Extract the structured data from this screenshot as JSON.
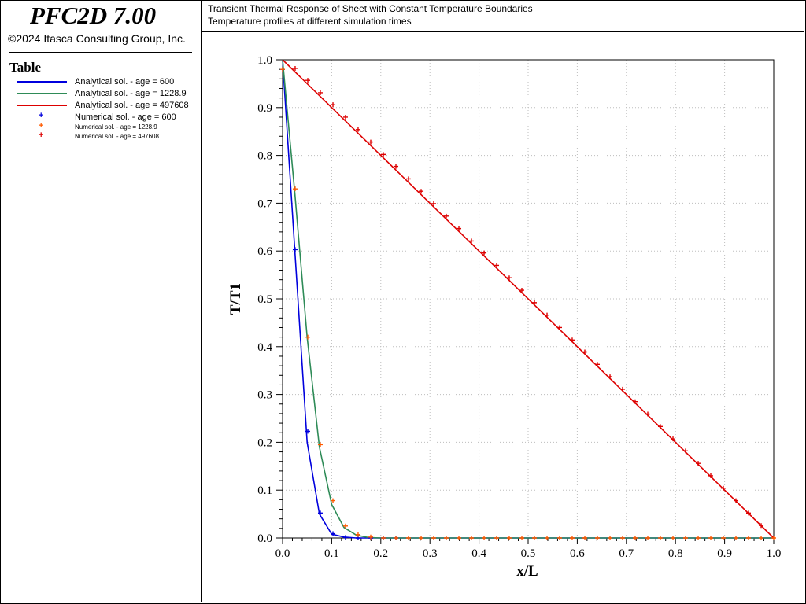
{
  "app": {
    "title": "PFC2D 7.00",
    "copyright": "©2024 Itasca Consulting Group, Inc."
  },
  "legend": {
    "title": "Table",
    "items": [
      {
        "label": "Analytical sol. - age = 600",
        "color": "#0000dd",
        "kind": "line",
        "small": false
      },
      {
        "label": "Analytical sol. - age = 1228.9",
        "color": "#2e8b57",
        "kind": "line",
        "small": false
      },
      {
        "label": "Analytical sol. - age = 497608",
        "color": "#dd0000",
        "kind": "line",
        "small": false
      },
      {
        "label": "Numerical sol. - age = 600",
        "color": "#0000dd",
        "kind": "marker",
        "small": false
      },
      {
        "label": "Numerical sol. - age = 1228.9",
        "color": "#ff5a00",
        "kind": "marker",
        "small": true
      },
      {
        "label": "Numerical sol. - age = 497608",
        "color": "#dd0000",
        "kind": "marker",
        "small": true
      }
    ]
  },
  "header": {
    "line1": "Transient Thermal Response of Sheet with Constant Temperature Boundaries",
    "line2": "Temperature profiles at different simulation times"
  },
  "chart_data": {
    "type": "line",
    "xlabel": "x/L",
    "ylabel": "T/T1",
    "xlim": [
      0,
      1
    ],
    "ylim": [
      0,
      1
    ],
    "xticks": [
      "0.0",
      "0.1",
      "0.2",
      "0.3",
      "0.4",
      "0.5",
      "0.6",
      "0.7",
      "0.8",
      "0.9",
      "1.0"
    ],
    "yticks": [
      "0.0",
      "0.1",
      "0.2",
      "0.3",
      "0.4",
      "0.5",
      "0.6",
      "0.7",
      "0.8",
      "0.9",
      "1.0"
    ],
    "grid": true,
    "series": [
      {
        "name": "Analytical sol. - age = 600",
        "kind": "line",
        "color": "#0000dd",
        "x": [
          0,
          0.025,
          0.05,
          0.075,
          0.1,
          0.125,
          0.15,
          0.2,
          0.25,
          1.0
        ],
        "y": [
          1.0,
          0.6,
          0.2,
          0.05,
          0.008,
          0.002,
          0.0,
          0.0,
          0.0,
          0.0
        ]
      },
      {
        "name": "Analytical sol. - age = 1228.9",
        "kind": "line",
        "color": "#2e8b57",
        "x": [
          0,
          0.025,
          0.05,
          0.075,
          0.1,
          0.125,
          0.15,
          0.175,
          0.2,
          0.25,
          1.0
        ],
        "y": [
          1.0,
          0.72,
          0.42,
          0.19,
          0.07,
          0.022,
          0.006,
          0.001,
          0.0,
          0.0,
          0.0
        ]
      },
      {
        "name": "Analytical sol. - age = 497608",
        "kind": "line",
        "color": "#dd0000",
        "x": [
          0,
          1.0
        ],
        "y": [
          1.0,
          0.0
        ]
      },
      {
        "name": "Numerical sol. - age = 600",
        "kind": "marker",
        "color": "#0000dd",
        "x": [
          0,
          0.0256,
          0.0513,
          0.0769,
          0.1026,
          0.1282,
          0.1538,
          0.1795,
          0.2051,
          0.2308
        ],
        "y": [
          0.98,
          0.603,
          0.223,
          0.052,
          0.009,
          0.001,
          0.0,
          0.0,
          0.0,
          0.0
        ]
      },
      {
        "name": "Numerical sol. - age = 1228.9",
        "kind": "marker",
        "color": "#ff5a00",
        "x": [
          0,
          0.0256,
          0.0513,
          0.0769,
          0.1026,
          0.1282,
          0.1538,
          0.1795,
          0.2051,
          0.2308,
          0.2564,
          0.2821,
          0.3077,
          0.3333,
          0.359,
          0.3846,
          0.4103,
          0.4359,
          0.4615,
          0.4872,
          0.5128,
          0.5385,
          0.5641,
          0.5897,
          0.6154,
          0.641,
          0.6667,
          0.6923,
          0.7179,
          0.7436,
          0.7692,
          0.7949,
          0.8205,
          0.8462,
          0.8718,
          0.8974,
          0.9231,
          0.9487,
          0.9744,
          1.0
        ],
        "y": [
          0.98,
          0.73,
          0.42,
          0.195,
          0.078,
          0.025,
          0.007,
          0.002,
          0.0,
          0.0,
          0.0,
          0.0,
          0.0,
          0.0,
          0.0,
          0.0,
          0.0,
          0.0,
          0.0,
          0.0,
          0.0,
          0.0,
          0.0,
          0.0,
          0.0,
          0.0,
          0.0,
          0.0,
          0.0,
          0.0,
          0.0,
          0.0,
          0.0,
          0.0,
          0.0,
          0.0,
          0.0,
          0.0,
          0.0,
          0.0
        ]
      },
      {
        "name": "Numerical sol. - age = 497608",
        "kind": "marker",
        "color": "#dd0000",
        "x": [
          0.0256,
          0.0513,
          0.0769,
          0.1026,
          0.1282,
          0.1538,
          0.1795,
          0.2051,
          0.2308,
          0.2564,
          0.2821,
          0.3077,
          0.3333,
          0.359,
          0.3846,
          0.4103,
          0.4359,
          0.4615,
          0.4872,
          0.5128,
          0.5385,
          0.5641,
          0.5897,
          0.6154,
          0.641,
          0.6667,
          0.6923,
          0.7179,
          0.7436,
          0.7692,
          0.7949,
          0.8205,
          0.8462,
          0.8718,
          0.8974,
          0.9231,
          0.9487,
          0.9744
        ],
        "y": [
          0.982,
          0.957,
          0.931,
          0.906,
          0.88,
          0.854,
          0.828,
          0.802,
          0.777,
          0.751,
          0.725,
          0.699,
          0.673,
          0.647,
          0.621,
          0.596,
          0.57,
          0.544,
          0.518,
          0.492,
          0.466,
          0.44,
          0.414,
          0.389,
          0.363,
          0.337,
          0.311,
          0.285,
          0.259,
          0.233,
          0.207,
          0.182,
          0.156,
          0.13,
          0.104,
          0.078,
          0.052,
          0.026
        ]
      }
    ]
  }
}
